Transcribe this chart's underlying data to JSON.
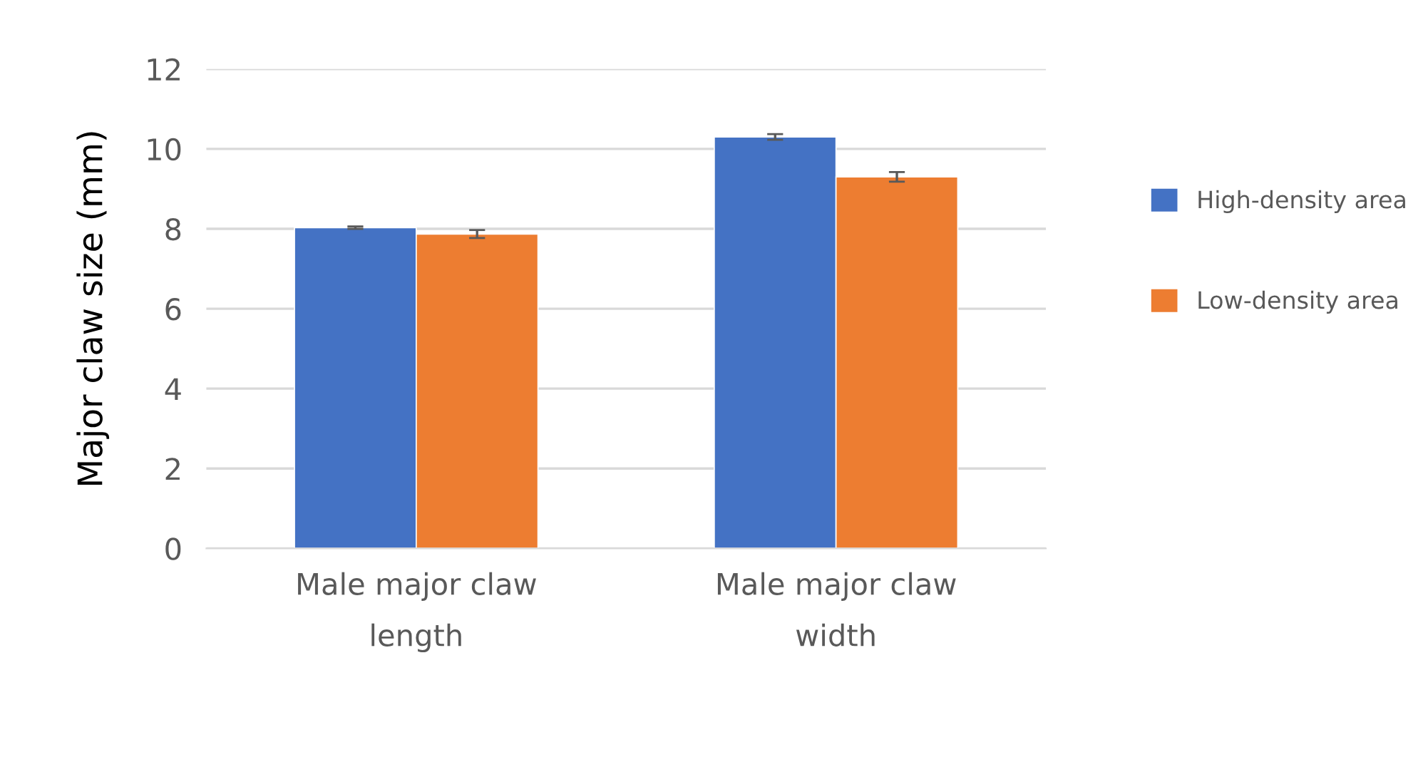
{
  "chart_data": {
    "type": "bar",
    "ylabel": "Major claw size (mm)",
    "categories": [
      "Male major claw length",
      "Male major claw width"
    ],
    "series": [
      {
        "name": "High-density area",
        "color": "#4472c4",
        "values": [
          8.03,
          10.3
        ],
        "errors": [
          0.03,
          0.07
        ]
      },
      {
        "name": "Low-density area",
        "color": "#ed7d31",
        "values": [
          7.87,
          9.3
        ],
        "errors": [
          0.1,
          0.12
        ]
      }
    ],
    "ylim": [
      0,
      12
    ],
    "yticks": [
      0,
      2,
      4,
      6,
      8,
      10,
      12
    ],
    "grid": "y",
    "legend": "right"
  }
}
